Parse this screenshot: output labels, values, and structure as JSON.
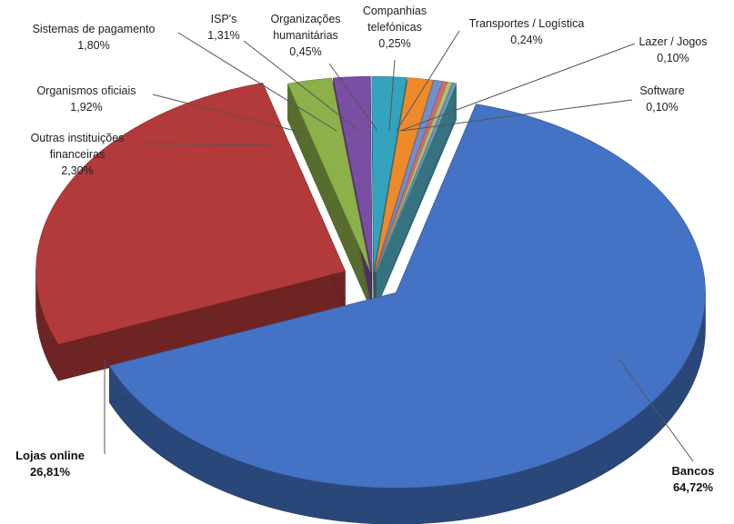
{
  "chart_data": {
    "type": "pie",
    "style": "3d-exploded",
    "title": "",
    "slices": [
      {
        "name": "Bancos",
        "value": 64.72,
        "label": "64,72%",
        "color": "#4472c4"
      },
      {
        "name": "Lojas online",
        "value": 26.81,
        "label": "26,81%",
        "color": "#b33a3a"
      },
      {
        "name": "Outras instituições financeiras",
        "value": 2.3,
        "label": "2,30%",
        "color": "#8cb04a"
      },
      {
        "name": "Organismos oficiais",
        "value": 1.92,
        "label": "1,92%",
        "color": "#7a4fa3"
      },
      {
        "name": "Sistemas de pagamento",
        "value": 1.8,
        "label": "1,80%",
        "color": "#34a3bd"
      },
      {
        "name": "ISP's",
        "value": 1.31,
        "label": "1,31%",
        "color": "#ef8a2a"
      },
      {
        "name": "Organizações humanitárias",
        "value": 0.45,
        "label": "0,45%",
        "color": "#6f8fcf"
      },
      {
        "name": "Companhias telefónicas",
        "value": 0.25,
        "label": "0,25%",
        "color": "#d46a6a"
      },
      {
        "name": "Transportes / Logística",
        "value": 0.24,
        "label": "0,24%",
        "color": "#a9c46a"
      },
      {
        "name": "Lazer / Jogos",
        "value": 0.1,
        "label": "0,10%",
        "color": "#9a7cc0"
      },
      {
        "name": "Software",
        "value": 0.1,
        "label": "0,10%",
        "color": "#58b8cf"
      }
    ],
    "labels": [
      {
        "lines": [
          "Bancos",
          "64,72%"
        ],
        "bold": true
      },
      {
        "lines": [
          "Lojas online",
          "26,81%"
        ],
        "bold": true
      },
      {
        "lines": [
          "Outras instituições",
          "financeiras",
          "2,30%"
        ],
        "bold": false
      },
      {
        "lines": [
          "Organismos oficiais",
          "1,92%"
        ],
        "bold": false
      },
      {
        "lines": [
          "Sistemas de pagamento",
          "1,80%"
        ],
        "bold": false
      },
      {
        "lines": [
          "ISP's",
          "1,31%"
        ],
        "bold": false
      },
      {
        "lines": [
          "Organizações",
          "humanitárias",
          "0,45%"
        ],
        "bold": false
      },
      {
        "lines": [
          "Companhias",
          "telefónicas",
          "0,25%"
        ],
        "bold": false
      },
      {
        "lines": [
          "Transportes / Logística",
          "0,24%"
        ],
        "bold": false
      },
      {
        "lines": [
          "Lazer / Jogos",
          "0,10%"
        ],
        "bold": false
      },
      {
        "lines": [
          "Software",
          "0,10%"
        ],
        "bold": false
      }
    ]
  }
}
